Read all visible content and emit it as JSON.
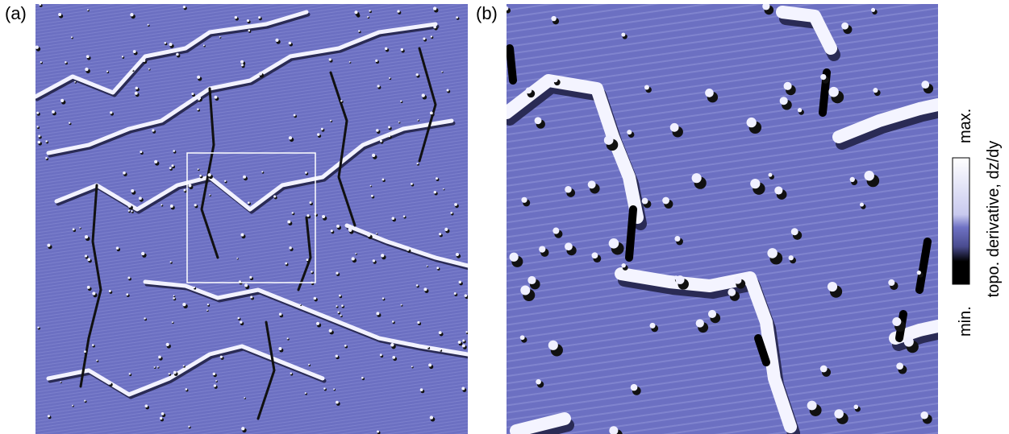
{
  "panels": [
    {
      "label": "(a)"
    },
    {
      "label": "(b)"
    }
  ],
  "colorbar": {
    "max_label": "max.",
    "min_label": "min.",
    "title": "topo. derivative, dz/dy"
  }
}
